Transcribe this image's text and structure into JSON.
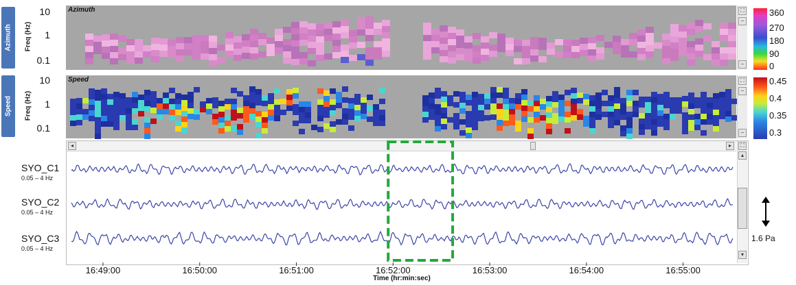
{
  "panels": {
    "azimuth": {
      "tab_label": "Azimuth",
      "ylabel": "Freq (Hz)",
      "title": "Azimuth",
      "yticks": [
        "10",
        "1",
        "0.1"
      ],
      "colorbar_ticks": [
        "360",
        "270",
        "180",
        "90",
        "0"
      ]
    },
    "speed": {
      "tab_label": "Speed",
      "ylabel": "Freq (Hz)",
      "title": "Speed",
      "yticks": [
        "10",
        "1",
        "0.1"
      ],
      "colorbar_ticks": [
        "0.45",
        "0.4",
        "0.35",
        "0.3"
      ]
    }
  },
  "traces": [
    {
      "name": "SYO_C1",
      "band": "0.05 – 4 Hz"
    },
    {
      "name": "SYO_C2",
      "band": "0.05 – 4 Hz"
    },
    {
      "name": "SYO_C3",
      "band": "0.05 – 4 Hz"
    }
  ],
  "scale": {
    "label": "1.6 Pa",
    "icon": "double-arrow-icon"
  },
  "colors": {
    "trace": "#3a44a8",
    "highlight": "#23a83c",
    "panel_bg": "#a6a6a6"
  },
  "chart_data": [
    {
      "type": "heatmap",
      "title": "Azimuth",
      "ylabel": "Freq (Hz)",
      "yscale": "log",
      "ylim": [
        0.05,
        10
      ],
      "colorbar": {
        "min": 0,
        "max": 360,
        "ticks": [
          360,
          270,
          180,
          90,
          0
        ]
      },
      "dominant_value": 300,
      "data_gap": [
        "16:51:55",
        "16:52:15"
      ]
    },
    {
      "type": "heatmap",
      "title": "Speed",
      "ylabel": "Freq (Hz)",
      "yscale": "log",
      "ylim": [
        0.05,
        10
      ],
      "colorbar": {
        "min": 0.3,
        "max": 0.45,
        "ticks": [
          0.45,
          0.4,
          0.35,
          0.3
        ]
      },
      "data_gap": [
        "16:51:55",
        "16:52:15"
      ]
    },
    {
      "type": "line",
      "xlabel": "Time (hr:min:sec)",
      "xticks": [
        "16:49:00",
        "16:50:00",
        "16:51:00",
        "16:52:00",
        "16:53:00",
        "16:54:00",
        "16:55:00"
      ],
      "xlim": [
        "16:48:37",
        "16:55:33"
      ],
      "series": [
        {
          "name": "SYO_C1"
        },
        {
          "name": "SYO_C2"
        },
        {
          "name": "SYO_C3"
        }
      ],
      "highlight_window": [
        "16:51:57",
        "16:52:37"
      ]
    }
  ]
}
